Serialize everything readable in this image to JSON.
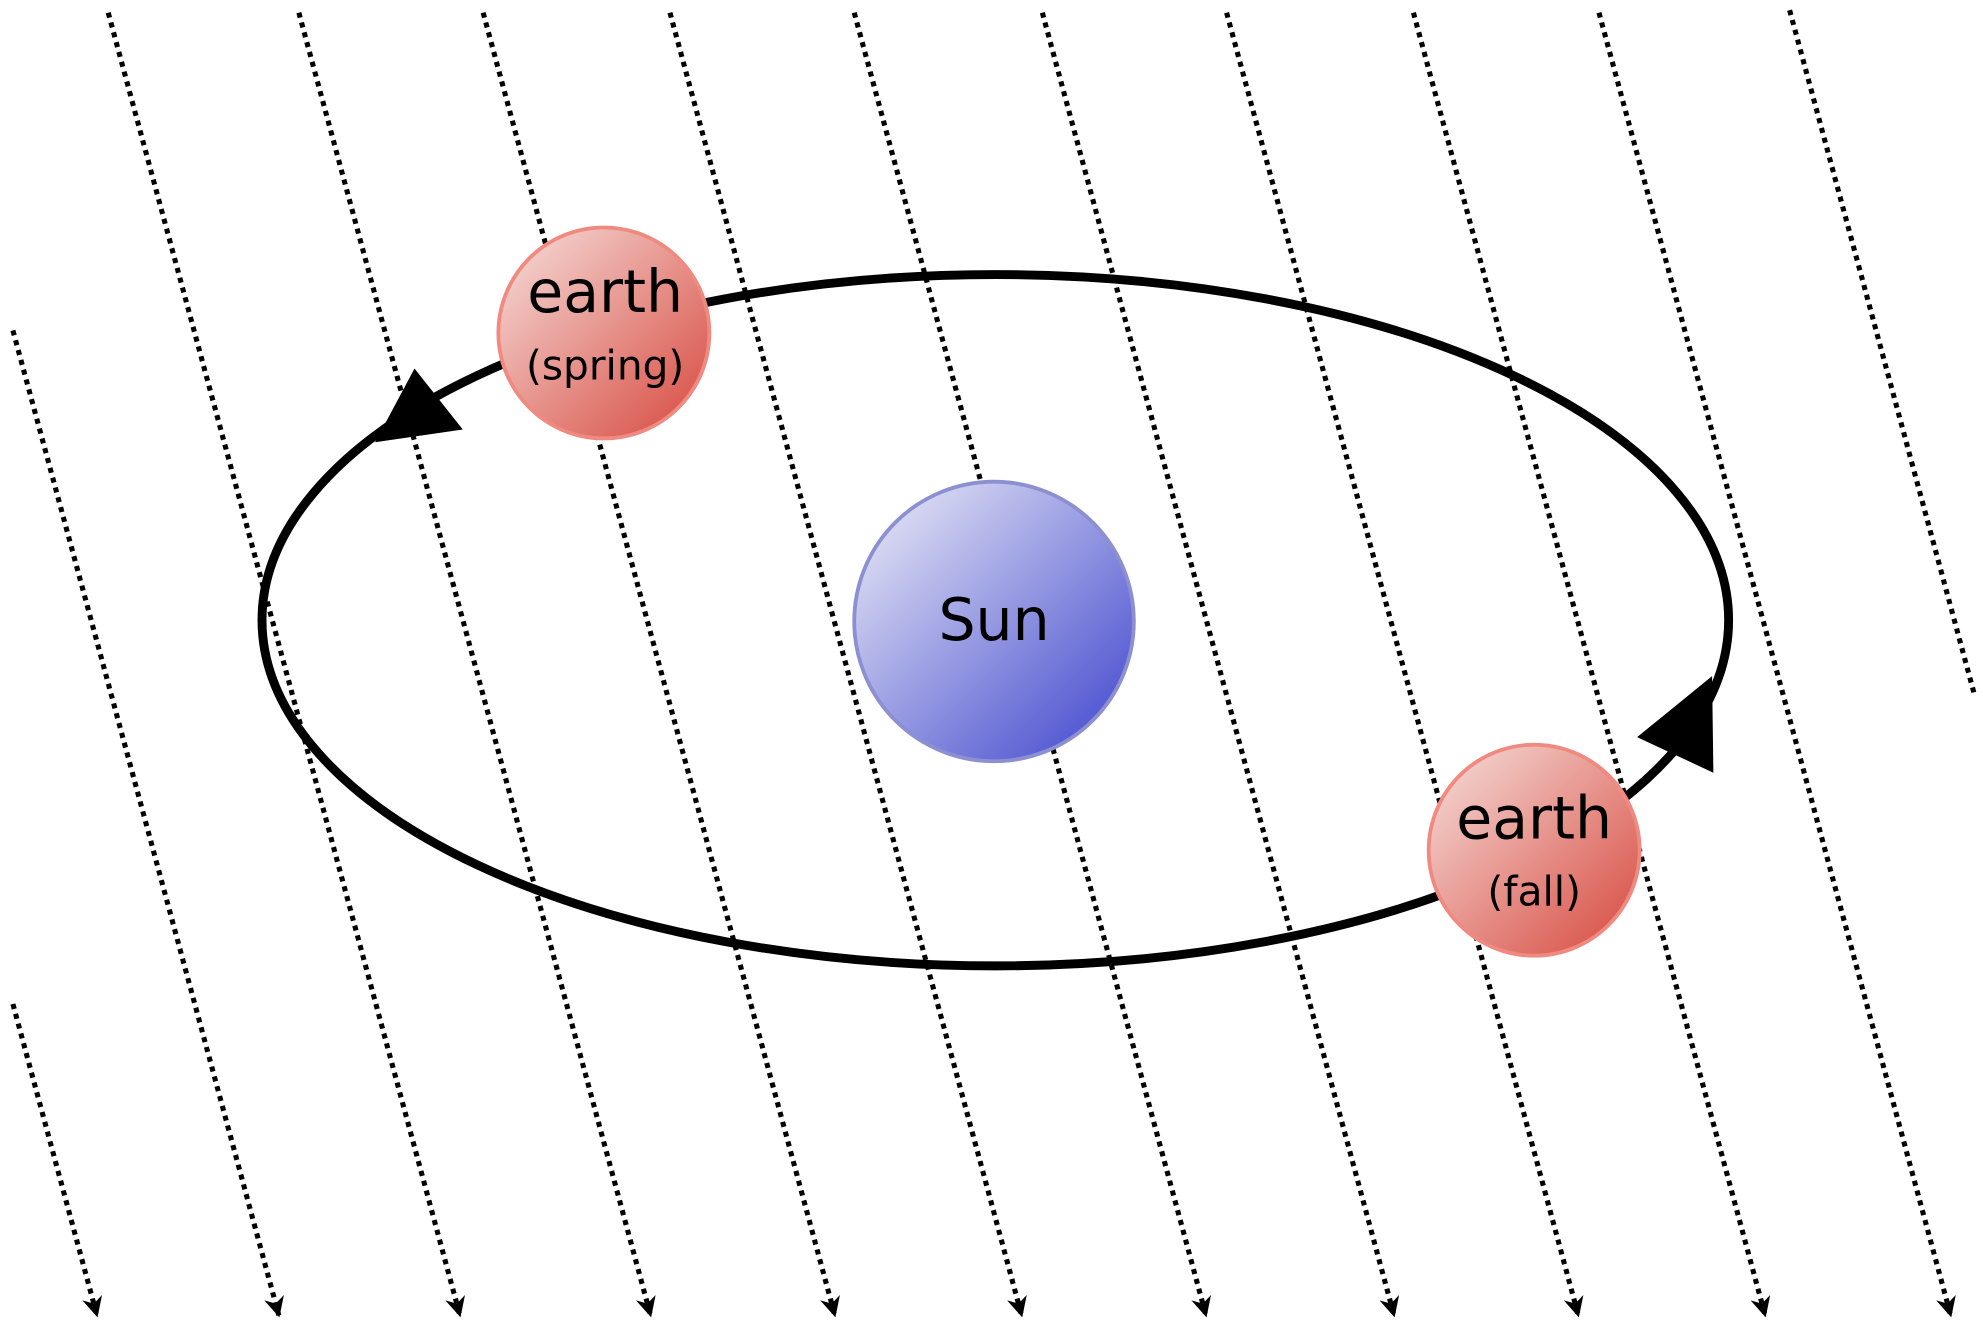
{
  "nodes": [
    {
      "label": "Sun"
    },
    {
      "label": "earth",
      "sublabel": "(spring)"
    },
    {
      "label": "earth",
      "sublabel": "(fall)"
    }
  ]
}
